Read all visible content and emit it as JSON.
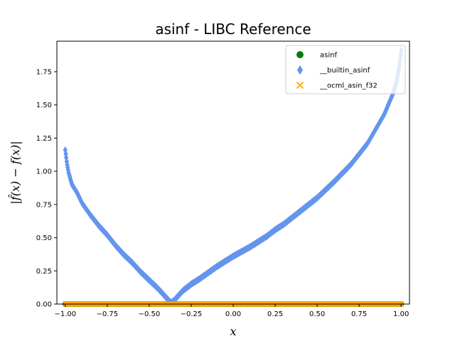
{
  "chart_data": {
    "type": "scatter",
    "title": "asinf - LIBC Reference",
    "xlabel": "x",
    "ylabel": "|f̂(x) − f(x)|",
    "xlim": [
      -1.05,
      1.05
    ],
    "ylim": [
      0,
      1.98
    ],
    "xticks": [
      "−1.00",
      "−0.75",
      "−0.50",
      "−0.25",
      "0.00",
      "0.25",
      "0.50",
      "0.75",
      "1.00"
    ],
    "yticks": [
      "0.00",
      "0.25",
      "0.50",
      "0.75",
      "1.00",
      "1.25",
      "1.50",
      "1.75"
    ],
    "legend_position": "top-right",
    "series": [
      {
        "name": "asinf",
        "marker": "circle",
        "color": "#008000",
        "x": [
          -1.0,
          1.0
        ],
        "y": [
          0.0,
          0.0
        ]
      },
      {
        "name": "__builtin_asinf",
        "marker": "diamond",
        "color": "#6495ED",
        "x": [
          -1.0,
          -0.99,
          -0.98,
          -0.96,
          -0.93,
          -0.9,
          -0.85,
          -0.8,
          -0.75,
          -0.7,
          -0.65,
          -0.6,
          -0.55,
          -0.5,
          -0.45,
          -0.4,
          -0.37,
          -0.35,
          -0.3,
          -0.25,
          -0.2,
          -0.1,
          0.0,
          0.1,
          0.2,
          0.25,
          0.3,
          0.4,
          0.5,
          0.6,
          0.7,
          0.75,
          0.8,
          0.85,
          0.9,
          0.95,
          0.97,
          0.99,
          1.0
        ],
        "y": [
          1.16,
          1.06,
          0.99,
          0.9,
          0.84,
          0.76,
          0.67,
          0.59,
          0.52,
          0.44,
          0.37,
          0.31,
          0.24,
          0.18,
          0.12,
          0.05,
          0.01,
          0.03,
          0.1,
          0.15,
          0.19,
          0.28,
          0.36,
          0.43,
          0.51,
          0.56,
          0.6,
          0.7,
          0.8,
          0.92,
          1.05,
          1.13,
          1.21,
          1.32,
          1.43,
          1.58,
          1.66,
          1.79,
          1.91
        ]
      },
      {
        "name": "__ocml_asin_f32",
        "marker": "x",
        "color": "#FFA500",
        "x": [
          -1.0,
          1.0
        ],
        "y": [
          0.0,
          0.0
        ]
      }
    ]
  }
}
